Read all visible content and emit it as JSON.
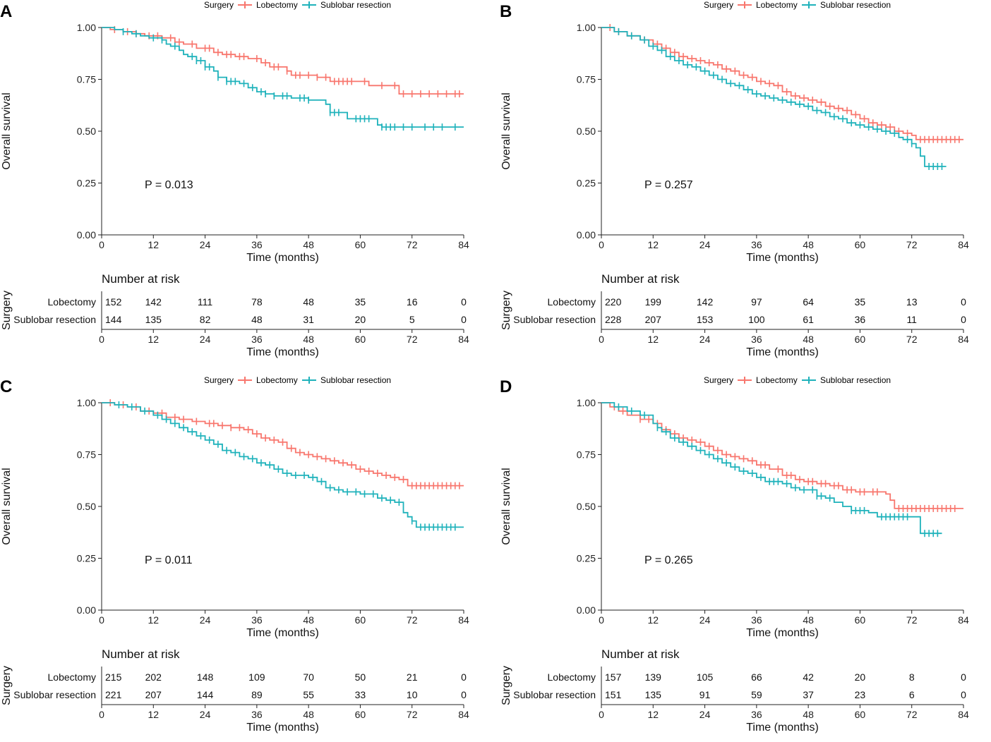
{
  "colors": {
    "lobectomy": "#F8766D",
    "sublobar": "#1FB2BB"
  },
  "legend": {
    "title": "Surgery",
    "items": [
      "Lobectomy",
      "Sublobar resection"
    ]
  },
  "common": {
    "ylabel": "Overall survival",
    "xlabel": "Time (months)",
    "risk_title": "Number at risk",
    "risk_ylabel": "Surgery",
    "yticks": [
      "0.00",
      "0.25",
      "0.50",
      "0.75",
      "1.00"
    ],
    "xticks": [
      "0",
      "12",
      "24",
      "36",
      "48",
      "60",
      "72",
      "84"
    ]
  },
  "chart_data": [
    {
      "panel": "A",
      "type": "line",
      "title": "",
      "xlabel": "Time (months)",
      "ylabel": "Overall survival",
      "xlim": [
        0,
        84
      ],
      "ylim": [
        0,
        1
      ],
      "p_value": "P = 0.013",
      "series": [
        {
          "name": "Lobectomy",
          "color": "#F8766D",
          "x": [
            0,
            2,
            5,
            8,
            10,
            14,
            17,
            19,
            22,
            26,
            28,
            31,
            34,
            37,
            39,
            43,
            44,
            50,
            53,
            60,
            62,
            66,
            69,
            84
          ],
          "y": [
            1.0,
            0.99,
            0.98,
            0.97,
            0.96,
            0.95,
            0.93,
            0.92,
            0.9,
            0.88,
            0.87,
            0.86,
            0.85,
            0.83,
            0.81,
            0.79,
            0.77,
            0.76,
            0.74,
            0.74,
            0.72,
            0.72,
            0.68,
            0.68
          ],
          "censor_x": [
            3,
            6,
            8,
            11,
            13,
            16,
            18,
            21,
            24,
            25,
            27,
            29,
            30,
            32,
            33,
            36,
            38,
            40,
            41,
            43,
            45,
            46,
            48,
            50,
            52,
            54,
            55,
            56,
            57,
            58,
            61,
            65,
            68,
            70,
            72,
            74,
            76,
            78,
            80,
            82,
            83
          ]
        },
        {
          "name": "Sublobar resection",
          "color": "#1FB2BB",
          "x": [
            0,
            3,
            5,
            7,
            9,
            11,
            14,
            15,
            16,
            18,
            19,
            20,
            22,
            24,
            26,
            27,
            29,
            32,
            34,
            36,
            38,
            40,
            44,
            46,
            48,
            52,
            53,
            57,
            60,
            64,
            65,
            84
          ],
          "y": [
            1.0,
            0.99,
            0.98,
            0.97,
            0.96,
            0.95,
            0.94,
            0.92,
            0.91,
            0.89,
            0.87,
            0.86,
            0.84,
            0.81,
            0.79,
            0.76,
            0.74,
            0.73,
            0.71,
            0.69,
            0.68,
            0.67,
            0.66,
            0.66,
            0.65,
            0.63,
            0.59,
            0.56,
            0.56,
            0.53,
            0.52,
            0.52
          ],
          "censor_x": [
            5,
            8,
            12,
            14,
            17,
            21,
            22,
            23,
            24,
            25,
            27,
            29,
            30,
            31,
            33,
            35,
            37,
            38,
            40,
            42,
            43,
            46,
            47,
            48,
            53,
            54,
            55,
            59,
            60,
            61,
            62,
            65,
            66,
            67,
            68,
            70,
            72,
            75,
            77,
            79,
            82
          ]
        }
      ],
      "risk_table": {
        "Lobectomy": [
          152,
          142,
          111,
          78,
          48,
          35,
          16,
          0
        ],
        "Sublobar resection": [
          144,
          135,
          82,
          48,
          31,
          20,
          5,
          0
        ]
      }
    },
    {
      "panel": "B",
      "type": "line",
      "title": "",
      "xlabel": "Time (months)",
      "ylabel": "Overall survival",
      "xlim": [
        0,
        84
      ],
      "ylim": [
        0,
        1
      ],
      "p_value": "P = 0.257",
      "series": [
        {
          "name": "Lobectomy",
          "color": "#F8766D",
          "x": [
            0,
            3,
            6,
            9,
            12,
            14,
            16,
            18,
            20,
            22,
            24,
            26,
            28,
            30,
            32,
            34,
            36,
            38,
            40,
            42,
            44,
            46,
            48,
            50,
            52,
            54,
            56,
            58,
            60,
            62,
            64,
            66,
            68,
            70,
            72,
            73,
            84
          ],
          "y": [
            1.0,
            0.98,
            0.96,
            0.94,
            0.92,
            0.9,
            0.88,
            0.86,
            0.85,
            0.84,
            0.83,
            0.82,
            0.8,
            0.79,
            0.77,
            0.76,
            0.74,
            0.73,
            0.72,
            0.69,
            0.67,
            0.66,
            0.65,
            0.64,
            0.62,
            0.61,
            0.6,
            0.58,
            0.56,
            0.54,
            0.53,
            0.52,
            0.5,
            0.49,
            0.48,
            0.46,
            0.46
          ],
          "censor_x": [
            2,
            4,
            7,
            10,
            13,
            15,
            17,
            19,
            21,
            23,
            25,
            27,
            29,
            31,
            33,
            35,
            37,
            39,
            41,
            43,
            45,
            47,
            49,
            51,
            53,
            55,
            57,
            59,
            61,
            63,
            65,
            67,
            69,
            71,
            74,
            75,
            76,
            77,
            78,
            79,
            80,
            81,
            82,
            83
          ]
        },
        {
          "name": "Sublobar resection",
          "color": "#1FB2BB",
          "x": [
            0,
            3,
            6,
            9,
            11,
            13,
            15,
            17,
            19,
            21,
            23,
            25,
            27,
            29,
            31,
            33,
            35,
            37,
            39,
            41,
            43,
            45,
            47,
            49,
            51,
            53,
            55,
            57,
            59,
            61,
            63,
            65,
            67,
            69,
            70,
            72,
            73,
            74,
            75,
            80
          ],
          "y": [
            1.0,
            0.98,
            0.96,
            0.94,
            0.91,
            0.89,
            0.86,
            0.84,
            0.82,
            0.81,
            0.79,
            0.77,
            0.75,
            0.73,
            0.72,
            0.7,
            0.68,
            0.67,
            0.66,
            0.65,
            0.64,
            0.63,
            0.62,
            0.6,
            0.59,
            0.57,
            0.56,
            0.54,
            0.53,
            0.52,
            0.51,
            0.5,
            0.49,
            0.47,
            0.46,
            0.44,
            0.42,
            0.38,
            0.33,
            0.33
          ],
          "censor_x": [
            4,
            7,
            10,
            12,
            14,
            16,
            18,
            20,
            22,
            24,
            26,
            28,
            30,
            32,
            34,
            36,
            38,
            40,
            42,
            44,
            46,
            48,
            50,
            52,
            54,
            56,
            58,
            60,
            62,
            64,
            66,
            68,
            71,
            72,
            76,
            77,
            78,
            79
          ]
        }
      ],
      "risk_table": {
        "Lobectomy": [
          220,
          199,
          142,
          97,
          64,
          35,
          13,
          0
        ],
        "Sublobar resection": [
          228,
          207,
          153,
          100,
          61,
          36,
          11,
          0
        ]
      }
    },
    {
      "panel": "C",
      "type": "line",
      "title": "",
      "xlabel": "Time (months)",
      "ylabel": "Overall survival",
      "xlim": [
        0,
        84
      ],
      "ylim": [
        0,
        1
      ],
      "p_value": "P = 0.011",
      "series": [
        {
          "name": "Lobectomy",
          "color": "#F8766D",
          "x": [
            0,
            3,
            6,
            9,
            12,
            15,
            18,
            21,
            24,
            27,
            30,
            33,
            35,
            37,
            39,
            41,
            43,
            45,
            47,
            49,
            51,
            53,
            55,
            57,
            59,
            61,
            63,
            65,
            67,
            69,
            71,
            84
          ],
          "y": [
            1.0,
            0.99,
            0.98,
            0.96,
            0.95,
            0.93,
            0.92,
            0.91,
            0.9,
            0.89,
            0.88,
            0.87,
            0.85,
            0.83,
            0.82,
            0.81,
            0.78,
            0.76,
            0.75,
            0.74,
            0.73,
            0.72,
            0.71,
            0.7,
            0.68,
            0.67,
            0.66,
            0.65,
            0.64,
            0.63,
            0.6,
            0.6
          ],
          "censor_x": [
            2,
            5,
            8,
            11,
            14,
            17,
            19,
            22,
            25,
            26,
            28,
            30,
            32,
            34,
            36,
            38,
            40,
            42,
            44,
            46,
            48,
            50,
            52,
            54,
            56,
            58,
            60,
            62,
            64,
            66,
            68,
            70,
            72,
            73,
            74,
            75,
            76,
            77,
            78,
            79,
            80,
            81,
            82,
            83
          ]
        },
        {
          "name": "Sublobar resection",
          "color": "#1FB2BB",
          "x": [
            0,
            3,
            6,
            9,
            12,
            14,
            16,
            18,
            20,
            22,
            24,
            26,
            28,
            30,
            32,
            34,
            36,
            38,
            40,
            42,
            44,
            46,
            48,
            50,
            52,
            54,
            56,
            58,
            60,
            62,
            64,
            66,
            68,
            70,
            71,
            72,
            73,
            84
          ],
          "y": [
            1.0,
            0.99,
            0.98,
            0.96,
            0.94,
            0.92,
            0.9,
            0.88,
            0.86,
            0.84,
            0.82,
            0.8,
            0.77,
            0.76,
            0.74,
            0.73,
            0.71,
            0.7,
            0.68,
            0.66,
            0.65,
            0.65,
            0.64,
            0.62,
            0.59,
            0.58,
            0.57,
            0.57,
            0.56,
            0.56,
            0.54,
            0.53,
            0.52,
            0.47,
            0.45,
            0.43,
            0.4,
            0.4
          ],
          "censor_x": [
            4,
            7,
            10,
            13,
            15,
            17,
            19,
            21,
            23,
            25,
            27,
            29,
            31,
            33,
            35,
            37,
            39,
            41,
            43,
            45,
            47,
            49,
            51,
            53,
            55,
            57,
            59,
            61,
            63,
            65,
            67,
            69,
            72,
            74,
            75,
            76,
            77,
            78,
            79,
            80,
            81,
            82
          ]
        }
      ],
      "risk_table": {
        "Lobectomy": [
          215,
          202,
          148,
          109,
          70,
          50,
          21,
          0
        ],
        "Sublobar resection": [
          221,
          207,
          144,
          89,
          55,
          33,
          10,
          0
        ]
      }
    },
    {
      "panel": "D",
      "type": "line",
      "title": "",
      "xlabel": "Time (months)",
      "ylabel": "Overall survival",
      "xlim": [
        0,
        84
      ],
      "ylim": [
        0,
        1
      ],
      "p_value": "P = 0.265",
      "series": [
        {
          "name": "Lobectomy",
          "color": "#F8766D",
          "x": [
            0,
            2,
            4,
            6,
            9,
            12,
            14,
            16,
            18,
            20,
            22,
            24,
            26,
            28,
            30,
            32,
            34,
            36,
            39,
            42,
            45,
            47,
            50,
            53,
            56,
            59,
            62,
            65,
            66,
            67,
            68,
            84
          ],
          "y": [
            1.0,
            0.98,
            0.96,
            0.94,
            0.92,
            0.9,
            0.87,
            0.85,
            0.83,
            0.82,
            0.81,
            0.79,
            0.77,
            0.75,
            0.74,
            0.73,
            0.72,
            0.7,
            0.68,
            0.65,
            0.63,
            0.62,
            0.61,
            0.6,
            0.58,
            0.57,
            0.57,
            0.57,
            0.56,
            0.53,
            0.49,
            0.49
          ],
          "censor_x": [
            3,
            5,
            9,
            11,
            13,
            15,
            17,
            19,
            21,
            23,
            25,
            27,
            29,
            31,
            33,
            35,
            37,
            38,
            41,
            43,
            44,
            46,
            48,
            49,
            51,
            52,
            54,
            55,
            57,
            58,
            60,
            61,
            63,
            64,
            69,
            70,
            71,
            72,
            73,
            74,
            75,
            76,
            77,
            78,
            79,
            80,
            81,
            82
          ]
        },
        {
          "name": "Sublobar resection",
          "color": "#1FB2BB",
          "x": [
            0,
            3,
            6,
            9,
            12,
            13,
            14,
            16,
            18,
            20,
            22,
            24,
            26,
            28,
            30,
            32,
            34,
            36,
            38,
            42,
            44,
            46,
            48,
            50,
            52,
            54,
            56,
            58,
            60,
            62,
            64,
            66,
            68,
            70,
            72,
            73,
            74,
            79
          ],
          "y": [
            1.0,
            0.98,
            0.96,
            0.94,
            0.9,
            0.88,
            0.86,
            0.83,
            0.81,
            0.79,
            0.77,
            0.75,
            0.73,
            0.71,
            0.69,
            0.67,
            0.66,
            0.64,
            0.62,
            0.61,
            0.59,
            0.58,
            0.58,
            0.55,
            0.54,
            0.52,
            0.5,
            0.48,
            0.48,
            0.47,
            0.45,
            0.45,
            0.45,
            0.45,
            0.45,
            0.45,
            0.37,
            0.37
          ],
          "censor_x": [
            4,
            7,
            10,
            13,
            15,
            17,
            19,
            21,
            23,
            25,
            27,
            29,
            31,
            33,
            35,
            37,
            39,
            40,
            41,
            43,
            45,
            47,
            49,
            50,
            51,
            53,
            58,
            59,
            60,
            61,
            65,
            66,
            67,
            68,
            69,
            70,
            71,
            75,
            76,
            77,
            78
          ]
        }
      ],
      "risk_table": {
        "Lobectomy": [
          157,
          139,
          105,
          66,
          42,
          20,
          8,
          0
        ],
        "Sublobar resection": [
          151,
          135,
          91,
          59,
          37,
          23,
          6,
          0
        ]
      }
    }
  ]
}
